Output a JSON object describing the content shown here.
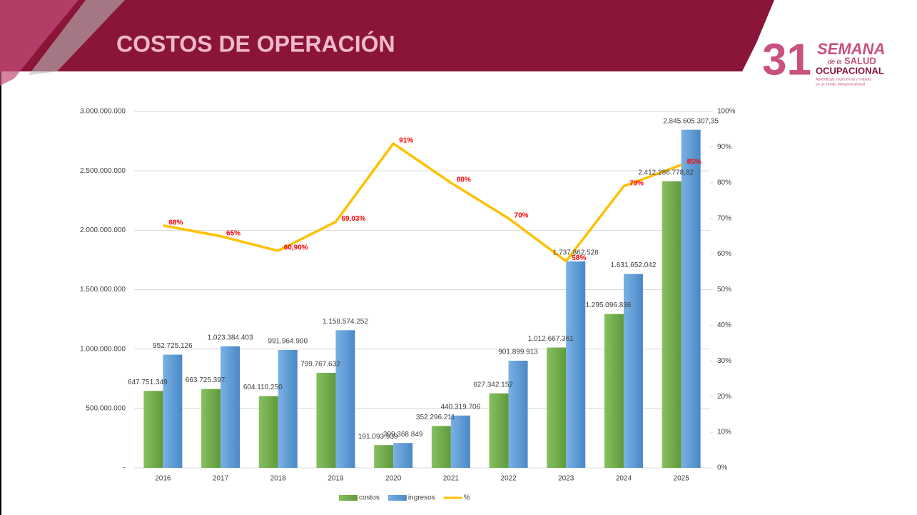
{
  "header": {
    "title": "COSTOS DE OPERACIÓN",
    "logo": {
      "number": "31",
      "line1": "SEMANA",
      "line2a": "de la",
      "line2b": "SALUD",
      "line3": "OCUPACIONAL",
      "line4": "Aprendizaje, experiencia y empatía",
      "line5": "en un mundo intergeneracional"
    }
  },
  "chart_data": {
    "type": "bar",
    "categories": [
      "2016",
      "2017",
      "2018",
      "2019",
      "2020",
      "2021",
      "2022",
      "2023",
      "2024",
      "2025"
    ],
    "series": [
      {
        "name": "costos",
        "color": "#70ad47",
        "values": [
          647751349,
          663725397,
          604110250,
          799767632,
          191093939,
          352296211,
          627342152,
          1012667361,
          1295096836,
          2412286778.82
        ],
        "value_labels": [
          "647.751.349",
          "663.725.397",
          "604.110.250",
          "799.767.632",
          "191.093.939",
          "352.296.211",
          "627.342.152",
          "1.012.667.361",
          "1.295.096.836",
          "2.412.286.778,82"
        ]
      },
      {
        "name": "ingresos",
        "color": "#5b9bd5",
        "values": [
          952725126,
          1023384403,
          991964900,
          1158574252,
          209368849,
          440319706,
          901899913,
          1737862528,
          1631652042,
          2845605307.35
        ],
        "value_labels": [
          "952.725.126",
          "1.023.384.403",
          "991.964.900",
          "1.158.574.252",
          "209.368.849",
          "440.319.706",
          "901.899.913",
          "1.737.862.528",
          "1.631.652.042",
          "2.845.605.307,35"
        ]
      },
      {
        "name": "%",
        "color": "#ffc000",
        "type": "line",
        "axis": "y2",
        "values": [
          68,
          65,
          60.9,
          69.03,
          91,
          80,
          70,
          58,
          79,
          85
        ],
        "value_labels": [
          "68%",
          "65%",
          "60,90%",
          "69,03%",
          "91%",
          "80%",
          "70%",
          "58%",
          "79%",
          "85%"
        ]
      }
    ],
    "ylim": [
      0,
      3000000000
    ],
    "yticks": [
      {
        "value": 0,
        "label": "-"
      },
      {
        "value": 500000000,
        "label": "500.000.000"
      },
      {
        "value": 1000000000,
        "label": "1.000.000.000"
      },
      {
        "value": 1500000000,
        "label": "1.500.000.000"
      },
      {
        "value": 2000000000,
        "label": "2.000.000.000"
      },
      {
        "value": 2500000000,
        "label": "2.500.000.000"
      },
      {
        "value": 3000000000,
        "label": "3.000.000.000"
      }
    ],
    "y2lim": [
      0,
      100
    ],
    "y2ticks": [
      {
        "value": 0,
        "label": "0%"
      },
      {
        "value": 10,
        "label": "10%"
      },
      {
        "value": 20,
        "label": "20%"
      },
      {
        "value": 30,
        "label": "30%"
      },
      {
        "value": 40,
        "label": "40%"
      },
      {
        "value": 50,
        "label": "50%"
      },
      {
        "value": 60,
        "label": "60%"
      },
      {
        "value": 70,
        "label": "70%"
      },
      {
        "value": 80,
        "label": "80%"
      },
      {
        "value": 90,
        "label": "90%"
      },
      {
        "value": 100,
        "label": "100%"
      }
    ],
    "grid": true,
    "legend": "bottom"
  }
}
